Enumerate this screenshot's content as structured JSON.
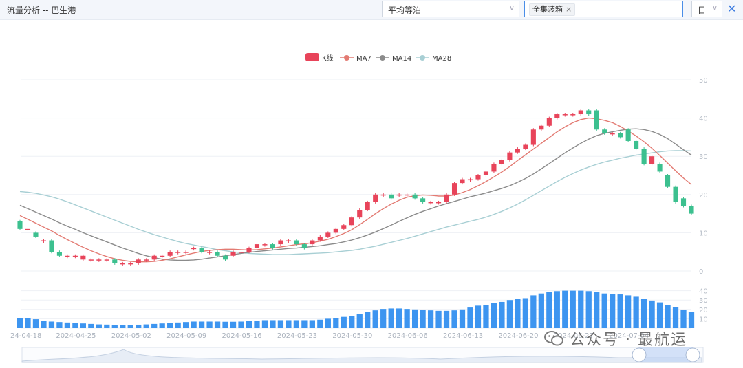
{
  "header": {
    "title": "流量分析 -- 巴生港"
  },
  "filters": {
    "type_value": "平均等泊",
    "cargo_tag": "全集装箱",
    "period_value": "日",
    "clear_symbol": "×",
    "close_symbol": "✕"
  },
  "watermark": {
    "text": "公众号 · 最航运"
  },
  "colors": {
    "up": "#e8445a",
    "down": "#3cc08f",
    "ma7": "#e37b73",
    "ma14": "#8b8b8b",
    "ma28": "#a8cfd4",
    "volume": "#3d95f0"
  },
  "chart_data": {
    "type": "candlestick",
    "legend": [
      "K线",
      "MA7",
      "MA14",
      "MA28"
    ],
    "legend_placement": "top-center",
    "y_axis": {
      "min": 0,
      "max": 50,
      "ticks": [
        0,
        10,
        20,
        30,
        40,
        50
      ],
      "position": "right"
    },
    "volume_axis": {
      "min": 0,
      "max": 50,
      "ticks": [
        10,
        20,
        30,
        40
      ],
      "position": "right"
    },
    "x_tick_labels": [
      "24-04-18",
      "2024-04-25",
      "2024-05-02",
      "2024-05-09",
      "2024-05-16",
      "2024-05-23",
      "2024-05-30",
      "2024-06-06",
      "2024-06-13",
      "2024-06-20",
      "2024-06-27",
      "2024-07-04"
    ],
    "candles": [
      [
        13,
        11
      ],
      [
        11,
        11
      ],
      [
        10,
        9
      ],
      [
        8,
        8
      ],
      [
        8,
        5
      ],
      [
        5,
        4
      ],
      [
        4,
        4
      ],
      [
        4,
        4
      ],
      [
        3,
        4
      ],
      [
        3,
        3
      ],
      [
        3,
        3
      ],
      [
        3,
        3
      ],
      [
        3,
        2
      ],
      [
        2,
        2
      ],
      [
        2,
        2
      ],
      [
        2,
        3
      ],
      [
        3,
        3
      ],
      [
        3,
        4
      ],
      [
        4,
        4
      ],
      [
        4,
        5
      ],
      [
        5,
        5
      ],
      [
        5,
        5
      ],
      [
        6,
        6
      ],
      [
        6,
        5
      ],
      [
        5,
        5
      ],
      [
        5,
        4
      ],
      [
        4,
        3
      ],
      [
        4,
        5
      ],
      [
        5,
        5
      ],
      [
        5,
        6
      ],
      [
        6,
        7
      ],
      [
        7,
        7
      ],
      [
        7,
        6
      ],
      [
        7,
        8
      ],
      [
        8,
        8
      ],
      [
        8,
        7
      ],
      [
        7,
        6
      ],
      [
        7,
        8
      ],
      [
        8,
        9
      ],
      [
        9,
        10
      ],
      [
        10,
        11
      ],
      [
        11,
        12
      ],
      [
        12,
        14
      ],
      [
        14,
        16
      ],
      [
        16,
        18
      ],
      [
        18,
        20
      ],
      [
        20,
        20
      ],
      [
        20,
        19
      ],
      [
        20,
        20
      ],
      [
        20,
        20
      ],
      [
        20,
        19
      ],
      [
        19,
        18
      ],
      [
        18,
        18
      ],
      [
        18,
        18
      ],
      [
        18,
        20
      ],
      [
        20,
        23
      ],
      [
        23,
        24
      ],
      [
        24,
        24
      ],
      [
        24,
        25
      ],
      [
        25,
        26
      ],
      [
        26,
        28
      ],
      [
        28,
        29
      ],
      [
        29,
        31
      ],
      [
        31,
        32
      ],
      [
        32,
        33
      ],
      [
        33,
        37
      ],
      [
        37,
        38
      ],
      [
        38,
        40
      ],
      [
        40,
        41
      ],
      [
        41,
        41
      ],
      [
        41,
        41
      ],
      [
        41,
        42
      ],
      [
        42,
        41
      ],
      [
        42,
        37
      ],
      [
        37,
        36
      ],
      [
        36,
        36
      ],
      [
        36,
        35
      ],
      [
        37,
        34
      ],
      [
        34,
        32
      ],
      [
        32,
        28
      ],
      [
        28,
        30
      ],
      [
        28,
        26
      ],
      [
        25,
        22
      ],
      [
        22,
        18
      ],
      [
        19,
        17
      ],
      [
        17,
        15
      ]
    ],
    "ma7": [
      14.5,
      13.5,
      12.5,
      11.5,
      10.5,
      9.3,
      8.2,
      7.2,
      6.2,
      5.3,
      4.5,
      3.8,
      3.2,
      2.8,
      2.5,
      2.4,
      2.4,
      2.5,
      2.8,
      3.2,
      3.7,
      4.2,
      4.7,
      5.1,
      5.4,
      5.6,
      5.7,
      5.7,
      5.6,
      5.5,
      5.6,
      5.8,
      6,
      6.3,
      6.6,
      6.9,
      7.1,
      7.4,
      7.8,
      8.3,
      9,
      9.8,
      10.8,
      12.1,
      13.5,
      15,
      16.3,
      17.5,
      18.5,
      19.3,
      19.7,
      19.9,
      19.8,
      19.6,
      19.6,
      19.9,
      20.5,
      21.3,
      22.3,
      23.4,
      24.6,
      25.9,
      27.3,
      28.9,
      30.4,
      31.9,
      33.4,
      34.9,
      36.4,
      37.7,
      38.8,
      39.6,
      40,
      39.8,
      39.4,
      38.8,
      37.8,
      36.6,
      35.3,
      33.8,
      32.1,
      30.2,
      28.2,
      26.2,
      24.3,
      22.6
    ],
    "ma14": [
      17.2,
      16.3,
      15.4,
      14.5,
      13.6,
      12.6,
      11.7,
      10.9,
      10,
      9.2,
      8.4,
      7.6,
      6.8,
      6,
      5.3,
      4.6,
      4,
      3.5,
      3.1,
      2.9,
      2.8,
      2.8,
      2.9,
      3.1,
      3.4,
      3.7,
      4,
      4.3,
      4.6,
      4.9,
      5.1,
      5.3,
      5.5,
      5.7,
      5.9,
      6,
      6.2,
      6.4,
      6.6,
      6.9,
      7.2,
      7.6,
      8.1,
      8.7,
      9.4,
      10.2,
      11.1,
      12,
      13,
      13.9,
      14.8,
      15.6,
      16.3,
      17,
      17.6,
      18.2,
      18.8,
      19.4,
      19.9,
      20.4,
      21,
      21.6,
      22.3,
      23.2,
      24.2,
      25.4,
      26.7,
      28.1,
      29.5,
      30.9,
      32.2,
      33.4,
      34.5,
      35.4,
      36,
      36.4,
      36.8,
      37.1,
      37.2,
      37,
      36.5,
      35.7,
      34.6,
      33.2,
      31.7,
      30.3
    ],
    "ma28": [
      20.8,
      20.6,
      20.3,
      19.9,
      19.4,
      18.8,
      18.1,
      17.3,
      16.5,
      15.7,
      14.9,
      14.1,
      13.3,
      12.5,
      11.7,
      10.9,
      10.2,
      9.5,
      8.9,
      8.3,
      7.7,
      7.2,
      6.8,
      6.4,
      6,
      5.6,
      5.3,
      5,
      4.8,
      4.6,
      4.5,
      4.4,
      4.3,
      4.3,
      4.3,
      4.4,
      4.5,
      4.6,
      4.7,
      4.8,
      5,
      5.2,
      5.4,
      5.7,
      6.1,
      6.5,
      7,
      7.5,
      8,
      8.5,
      9.1,
      9.7,
      10.3,
      10.9,
      11.5,
      12,
      12.5,
      13,
      13.5,
      14.1,
      14.8,
      15.6,
      16.5,
      17.5,
      18.6,
      19.8,
      21,
      22.2,
      23.4,
      24.5,
      25.5,
      26.4,
      27.2,
      27.9,
      28.5,
      29,
      29.5,
      29.9,
      30.3,
      30.6,
      30.9,
      31.2,
      31.4,
      31.5,
      31.5,
      31.4
    ],
    "volume": [
      11,
      10.5,
      9.5,
      8,
      7,
      6.5,
      6,
      5.5,
      5,
      4.5,
      4,
      3.8,
      3.5,
      3.5,
      3.5,
      3.7,
      4,
      4.5,
      5,
      5.5,
      6,
      6.5,
      7,
      7,
      7,
      7,
      6.8,
      6.8,
      7,
      7.5,
      8,
      8.5,
      8.5,
      8.5,
      8.5,
      8.5,
      8.5,
      8.5,
      9,
      10,
      11,
      12,
      13,
      15,
      17,
      19,
      20.5,
      21,
      21,
      20.5,
      20,
      19.5,
      19,
      18.5,
      18.5,
      19,
      20,
      22,
      24,
      25,
      26.5,
      28,
      30,
      31,
      32,
      35,
      37,
      38.5,
      39.5,
      40,
      40,
      40,
      39.5,
      38.5,
      37,
      36.5,
      36,
      35,
      33.5,
      31.5,
      29.5,
      27.5,
      25,
      22.5,
      19.5,
      17.5
    ]
  }
}
